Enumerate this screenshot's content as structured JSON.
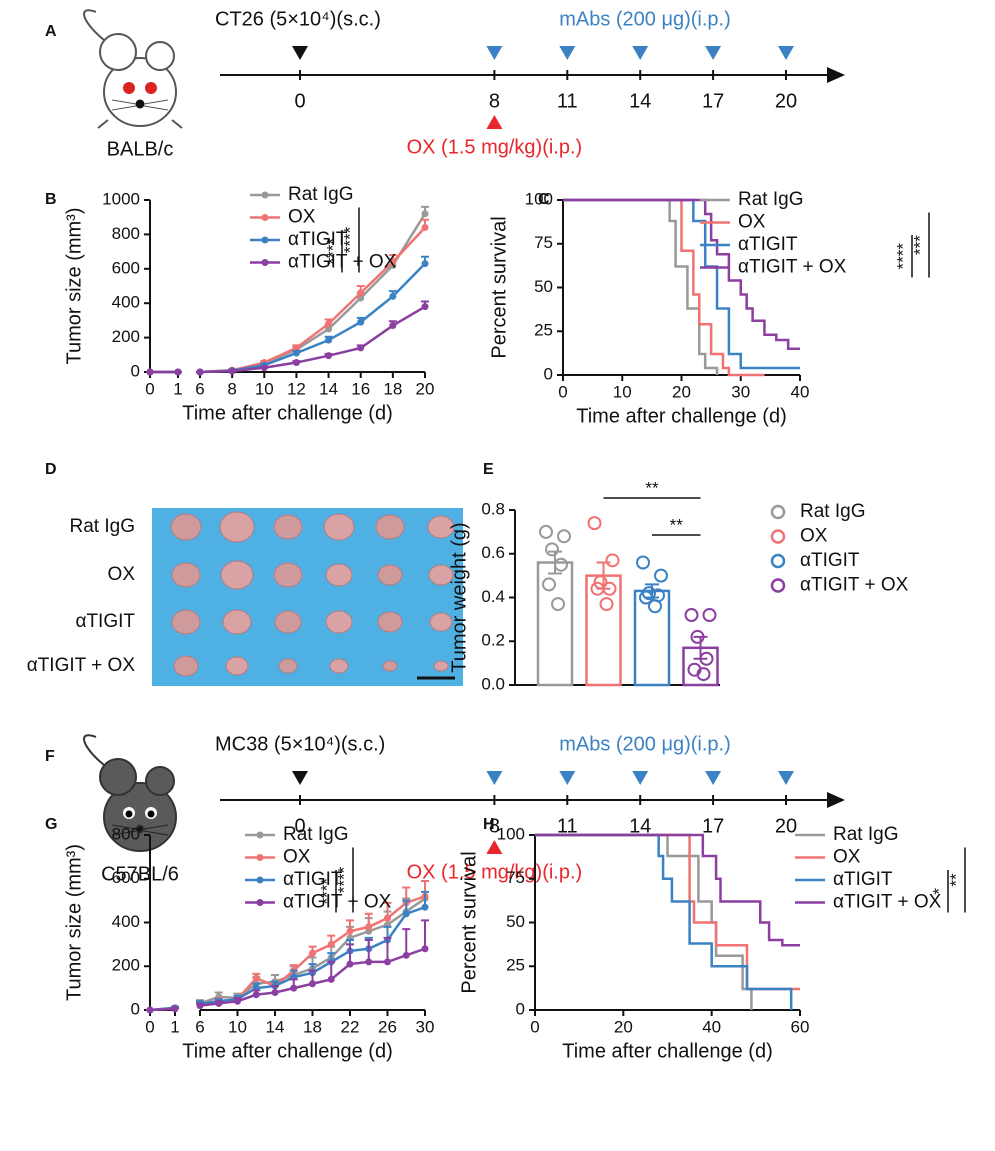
{
  "timelines": [
    {
      "panel": "A",
      "strain": "BALB/c",
      "tumor": "CT26 (5×10⁴)(s.c.)",
      "mabs": "mAbs (200 μg)(i.p.)",
      "ox": "OX (1.5 mg/kg)(i.p.)",
      "days": [
        0,
        8,
        11,
        14,
        17,
        20
      ]
    },
    {
      "panel": "F",
      "strain": "C57BL/6",
      "tumor": "MC38 (5×10⁴)(s.c.)",
      "mabs": "mAbs (200 μg)(i.p.)",
      "ox": "OX (1.5 mg/kg)(i.p.)",
      "days": [
        0,
        8,
        11,
        14,
        17,
        20
      ]
    }
  ],
  "photo": {
    "panel": "D",
    "rows": [
      "Rat IgG",
      "OX",
      "αTIGIT",
      "αTIGIT + OX"
    ]
  },
  "chart_data": [
    {
      "panel": "B",
      "type": "line",
      "ylabel": "Tumor size (mm³)",
      "xlabel": "Time after challenge (d)",
      "x": [
        0,
        1,
        6,
        8,
        10,
        12,
        14,
        16,
        18,
        20
      ],
      "xlim": [
        0,
        20
      ],
      "xbreak": [
        1,
        6
      ],
      "xticks": [
        0,
        1,
        6,
        8,
        10,
        12,
        14,
        16,
        18,
        20
      ],
      "ylim": [
        0,
        1000
      ],
      "yticks": [
        0,
        200,
        400,
        600,
        800,
        1000
      ],
      "series": [
        {
          "name": "Rat IgG",
          "color": "#999999",
          "values": [
            0,
            0,
            0,
            10,
            50,
            130,
            250,
            430,
            620,
            920
          ],
          "errors": [
            0,
            0,
            0,
            5,
            8,
            15,
            25,
            30,
            35,
            40
          ]
        },
        {
          "name": "OX",
          "color": "#f07272",
          "values": [
            0,
            0,
            0,
            10,
            55,
            140,
            280,
            460,
            640,
            840
          ],
          "errors": [
            0,
            0,
            0,
            5,
            8,
            15,
            25,
            40,
            40,
            45
          ]
        },
        {
          "name": "αTIGIT",
          "color": "#3b82c4",
          "values": [
            0,
            0,
            0,
            8,
            40,
            110,
            185,
            290,
            440,
            630
          ],
          "errors": [
            0,
            0,
            0,
            4,
            6,
            12,
            20,
            25,
            30,
            40
          ]
        },
        {
          "name": "αTIGIT + OX",
          "color": "#8b3fa0",
          "values": [
            0,
            0,
            0,
            5,
            25,
            55,
            95,
            140,
            270,
            380
          ],
          "errors": [
            0,
            0,
            0,
            3,
            5,
            8,
            10,
            15,
            25,
            30
          ]
        }
      ],
      "annotations": [
        "****",
        "****"
      ]
    },
    {
      "panel": "C",
      "type": "step",
      "ylabel": "Percent survival",
      "xlabel": "Time after challenge (d)",
      "xlim": [
        0,
        40
      ],
      "xticks": [
        0,
        10,
        20,
        30,
        40
      ],
      "ylim": [
        0,
        100
      ],
      "yticks": [
        0,
        25,
        50,
        75,
        100
      ],
      "series": [
        {
          "name": "Rat IgG",
          "color": "#999999",
          "x": [
            0,
            18,
            19,
            21,
            23,
            24,
            26
          ],
          "values": [
            100,
            88,
            62,
            38,
            12,
            4,
            0
          ]
        },
        {
          "name": "OX",
          "color": "#f07272",
          "x": [
            0,
            20,
            22,
            23,
            25,
            27,
            28,
            34
          ],
          "values": [
            100,
            71,
            46,
            29,
            12,
            4,
            0,
            0
          ]
        },
        {
          "name": "αTIGIT",
          "color": "#3b82c4",
          "x": [
            0,
            22,
            24,
            26,
            28,
            30,
            40
          ],
          "values": [
            100,
            88,
            62,
            38,
            12,
            4,
            4
          ]
        },
        {
          "name": "αTIGIT + OX",
          "color": "#8b3fa0",
          "x": [
            0,
            24,
            25,
            26,
            28,
            30,
            31,
            32,
            34,
            36,
            38,
            40
          ],
          "values": [
            100,
            92,
            77,
            69,
            54,
            46,
            38,
            31,
            23,
            20,
            15,
            15
          ]
        }
      ],
      "annotations": [
        "****",
        "***"
      ]
    },
    {
      "panel": "E",
      "type": "bar",
      "ylabel": "Tumor weight (g)",
      "categories": [
        "Rat IgG",
        "OX",
        "αTIGIT",
        "αTIGIT + OX"
      ],
      "colors": [
        "#999999",
        "#f07272",
        "#3b82c4",
        "#8b3fa0"
      ],
      "values": [
        0.56,
        0.5,
        0.43,
        0.17
      ],
      "errors": [
        0.05,
        0.06,
        0.03,
        0.05
      ],
      "points": [
        [
          0.7,
          0.68,
          0.62,
          0.55,
          0.46,
          0.37
        ],
        [
          0.74,
          0.57,
          0.47,
          0.44,
          0.44,
          0.37
        ],
        [
          0.56,
          0.5,
          0.42,
          0.41,
          0.4,
          0.36
        ],
        [
          0.32,
          0.32,
          0.22,
          0.12,
          0.07,
          0.05
        ]
      ],
      "ylim": [
        0,
        0.8
      ],
      "yticks": [
        {
          "value": 0,
          "label": "0.0"
        },
        0.2,
        0.4,
        0.6,
        0.8
      ],
      "annotations": [
        "**",
        "**"
      ]
    },
    {
      "panel": "G",
      "type": "line",
      "ylabel": "Tumor size (mm³)",
      "xlabel": "Time after challenge (d)",
      "x": [
        0,
        1,
        6,
        8,
        10,
        12,
        14,
        16,
        18,
        20,
        22,
        24,
        26,
        28,
        30
      ],
      "xlim": [
        0,
        30
      ],
      "xbreak": [
        1,
        6
      ],
      "xticks": [
        0,
        1,
        6,
        10,
        14,
        18,
        22,
        26,
        30
      ],
      "ylim": [
        0,
        800
      ],
      "yticks": [
        0,
        200,
        400,
        600,
        800
      ],
      "series": [
        {
          "name": "Rat IgG",
          "color": "#999999",
          "values": [
            0,
            10,
            30,
            60,
            55,
            120,
            130,
            160,
            190,
            240,
            330,
            360,
            390,
            450,
            510
          ],
          "errors": [
            0,
            5,
            15,
            20,
            20,
            30,
            30,
            40,
            50,
            50,
            50,
            60,
            60,
            60,
            80
          ]
        },
        {
          "name": "OX",
          "color": "#f07272",
          "values": [
            0,
            10,
            30,
            40,
            50,
            145,
            110,
            180,
            260,
            300,
            360,
            380,
            420,
            490,
            520
          ],
          "errors": [
            0,
            5,
            10,
            15,
            15,
            20,
            20,
            25,
            30,
            40,
            50,
            60,
            70,
            70,
            70
          ]
        },
        {
          "name": "αTIGIT",
          "color": "#3b82c4",
          "values": [
            0,
            10,
            30,
            40,
            50,
            100,
            110,
            150,
            170,
            220,
            270,
            280,
            320,
            440,
            470
          ],
          "errors": [
            0,
            5,
            10,
            10,
            15,
            20,
            20,
            30,
            40,
            40,
            50,
            50,
            60,
            60,
            70
          ]
        },
        {
          "name": "αTIGIT + OX",
          "color": "#8b3fa0",
          "values": [
            0,
            5,
            20,
            30,
            40,
            70,
            80,
            100,
            120,
            140,
            210,
            220,
            220,
            250,
            280
          ],
          "errors": [
            0,
            3,
            10,
            10,
            15,
            20,
            30,
            40,
            60,
            80,
            90,
            100,
            110,
            120,
            130
          ]
        }
      ],
      "annotations": [
        "****",
        "****"
      ]
    },
    {
      "panel": "H",
      "type": "step",
      "ylabel": "Percent survival",
      "xlabel": "Time after challenge (d)",
      "xlim": [
        0,
        60
      ],
      "xticks": [
        0,
        20,
        40,
        60
      ],
      "ylim": [
        0,
        100
      ],
      "yticks": [
        0,
        25,
        50,
        75,
        100
      ],
      "series": [
        {
          "name": "Rat IgG",
          "color": "#999999",
          "x": [
            0,
            30,
            37,
            40,
            41,
            47,
            49
          ],
          "values": [
            100,
            88,
            62,
            50,
            31,
            12,
            0
          ]
        },
        {
          "name": "OX",
          "color": "#f07272",
          "x": [
            0,
            35,
            36,
            41,
            48,
            60
          ],
          "values": [
            100,
            62,
            50,
            37,
            12,
            12
          ]
        },
        {
          "name": "αTIGIT",
          "color": "#3b82c4",
          "x": [
            0,
            28,
            29,
            31,
            35,
            40,
            48,
            58
          ],
          "values": [
            100,
            88,
            75,
            62,
            38,
            25,
            12,
            0
          ]
        },
        {
          "name": "αTIGIT + OX",
          "color": "#8b3fa0",
          "x": [
            0,
            38,
            41,
            42,
            51,
            53,
            56,
            60
          ],
          "values": [
            100,
            88,
            75,
            62,
            50,
            40,
            37,
            37
          ]
        }
      ],
      "annotations": [
        "*",
        "**"
      ]
    }
  ]
}
